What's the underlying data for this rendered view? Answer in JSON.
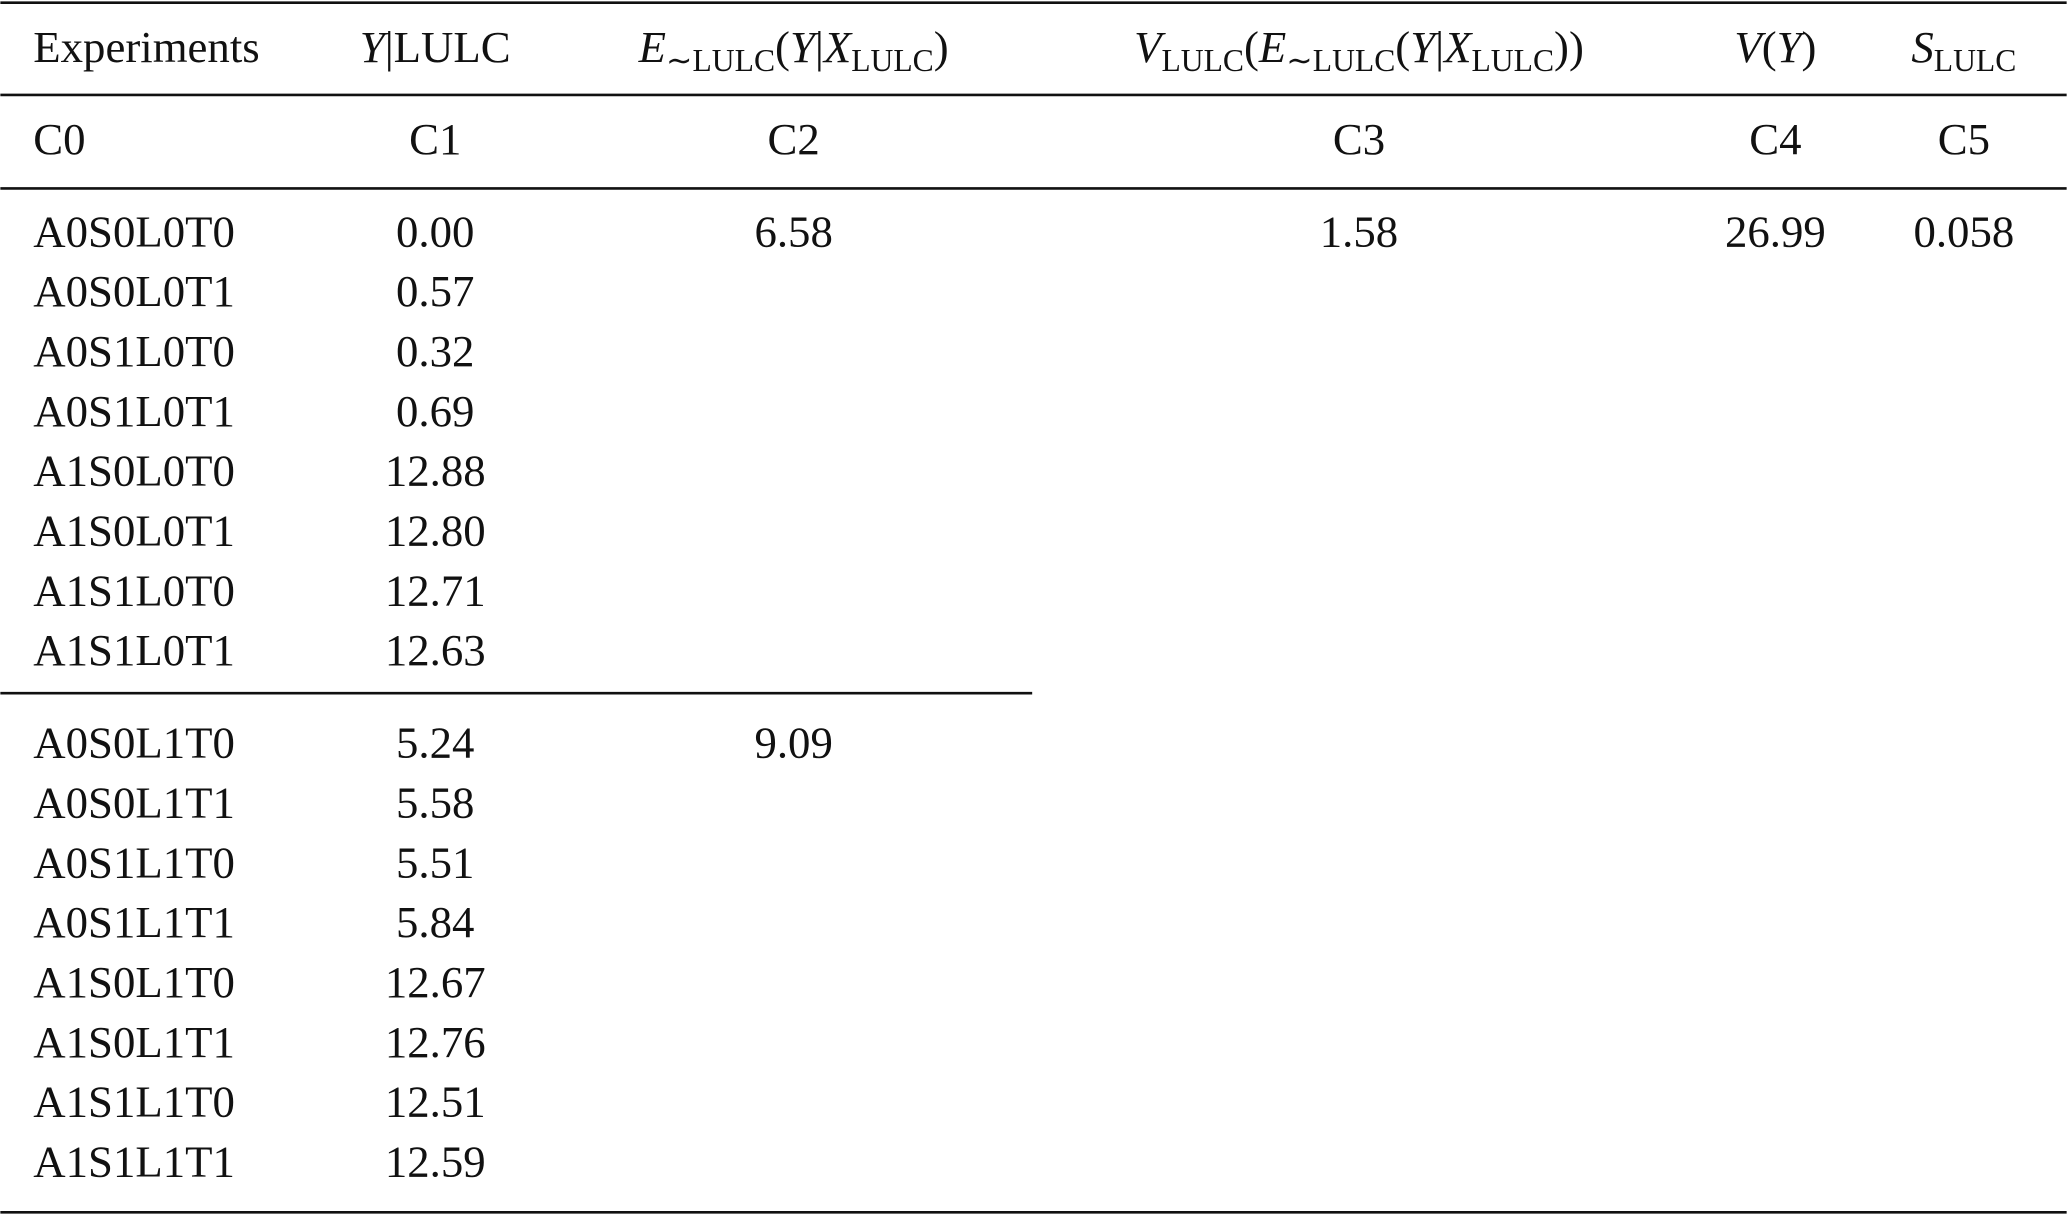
{
  "table": {
    "headers": [
      [
        {
          "text": "Experiments"
        }
      ],
      [
        {
          "text": "Y",
          "italic": true
        },
        {
          "text": "|LULC"
        }
      ],
      [
        {
          "text": "E",
          "italic": true
        },
        {
          "text": "∼LULC",
          "sub": true
        },
        {
          "text": "("
        },
        {
          "text": "Y",
          "italic": true
        },
        {
          "text": "|"
        },
        {
          "text": "X",
          "italic": true
        },
        {
          "text": "LULC",
          "sub": true
        },
        {
          "text": ")"
        }
      ],
      [
        {
          "text": "V",
          "italic": true
        },
        {
          "text": "LULC",
          "sub": true
        },
        {
          "text": "("
        },
        {
          "text": "E",
          "italic": true
        },
        {
          "text": "∼LULC",
          "sub": true
        },
        {
          "text": "("
        },
        {
          "text": "Y",
          "italic": true
        },
        {
          "text": "|"
        },
        {
          "text": "X",
          "italic": true
        },
        {
          "text": "LULC",
          "sub": true
        },
        {
          "text": "))"
        }
      ],
      [
        {
          "text": "V",
          "italic": true
        },
        {
          "text": "("
        },
        {
          "text": "Y",
          "italic": true
        },
        {
          "text": ")"
        }
      ],
      [
        {
          "text": "S",
          "italic": true
        },
        {
          "text": "LULC",
          "sub": true
        }
      ]
    ],
    "codes": [
      "C0",
      "C1",
      "C2",
      "C3",
      "C4",
      "C5"
    ],
    "groups": [
      {
        "rows": [
          [
            "A0S0L0T0",
            "0.00"
          ],
          [
            "A0S0L0T1",
            "0.57"
          ],
          [
            "A0S1L0T0",
            "0.32"
          ],
          [
            "A0S1L0T1",
            "0.69"
          ],
          [
            "A1S0L0T0",
            "12.88"
          ],
          [
            "A1S0L0T1",
            "12.80"
          ],
          [
            "A1S1L0T0",
            "12.71"
          ],
          [
            "A1S1L0T1",
            "12.63"
          ]
        ],
        "c2": "6.58"
      },
      {
        "rows": [
          [
            "A0S0L1T0",
            "5.24"
          ],
          [
            "A0S0L1T1",
            "5.58"
          ],
          [
            "A0S1L1T0",
            "5.51"
          ],
          [
            "A0S1L1T1",
            "5.84"
          ],
          [
            "A1S0L1T0",
            "12.67"
          ],
          [
            "A1S0L1T1",
            "12.76"
          ],
          [
            "A1S1L1T0",
            "12.51"
          ],
          [
            "A1S1L1T1",
            "12.59"
          ]
        ],
        "c2": "9.09"
      }
    ],
    "c3": "1.58",
    "c4": "26.99",
    "c5": "0.058"
  }
}
